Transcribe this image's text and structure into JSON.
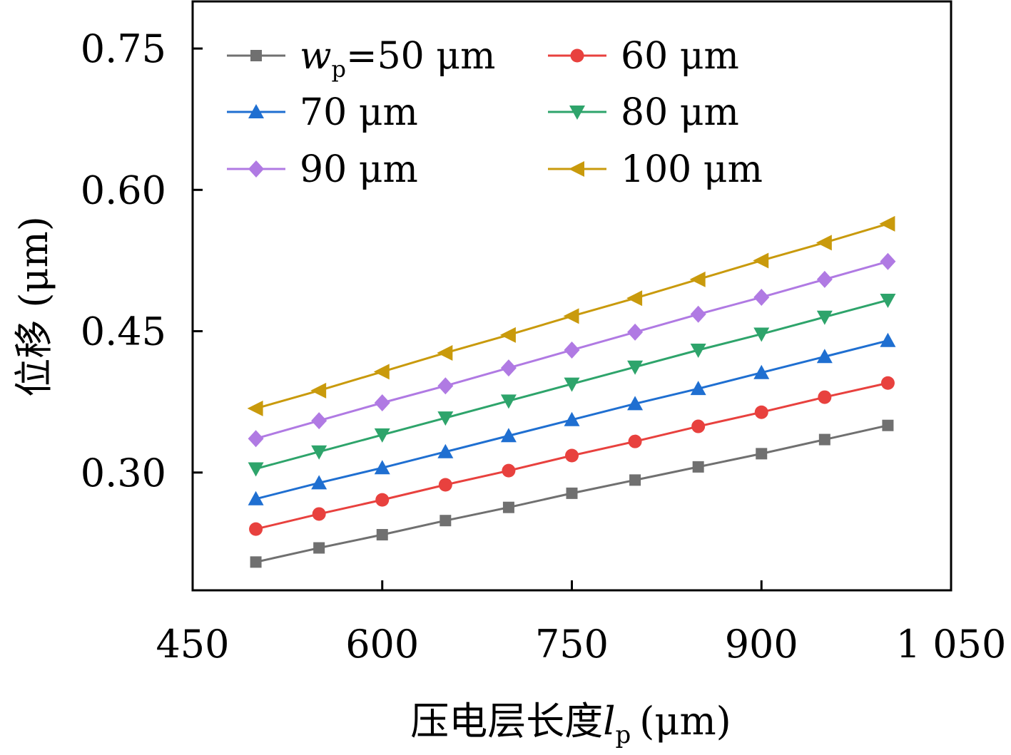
{
  "chart_data": {
    "type": "line",
    "xlabel": {
      "text": "压电层长度",
      "var": "l",
      "sub": "p",
      "unit": "(μm)"
    },
    "ylabel": "位移 (μm)",
    "xlim": [
      450,
      1050
    ],
    "ylim": [
      0.175,
      0.8
    ],
    "xticks": [
      450,
      600,
      750,
      900,
      1050
    ],
    "xtick_labels": [
      "450",
      "600",
      "750",
      "900",
      "1 050"
    ],
    "yticks": [
      0.3,
      0.45,
      0.6,
      0.75
    ],
    "ytick_labels": [
      "0.30",
      "0.45",
      "0.60",
      "0.75"
    ],
    "grid": false,
    "legend_position": "top-left",
    "x": [
      500,
      550,
      600,
      650,
      700,
      750,
      800,
      850,
      900,
      950,
      1000
    ],
    "series": [
      {
        "name": "=50 μm",
        "legend_prefix": "w",
        "legend_sub": "p",
        "color": "#707070",
        "marker": "square",
        "values": [
          0.205,
          0.22,
          0.234,
          0.249,
          0.263,
          0.278,
          0.292,
          0.306,
          0.32,
          0.335,
          0.35
        ]
      },
      {
        "name": "60 μm",
        "color": "#e8413e",
        "marker": "circle",
        "values": [
          0.24,
          0.256,
          0.271,
          0.287,
          0.302,
          0.318,
          0.333,
          0.349,
          0.364,
          0.38,
          0.395
        ]
      },
      {
        "name": "70 μm",
        "color": "#1f6fd1",
        "marker": "triangle-up",
        "values": [
          0.272,
          0.289,
          0.305,
          0.322,
          0.339,
          0.356,
          0.373,
          0.389,
          0.406,
          0.423,
          0.44
        ]
      },
      {
        "name": "80 μm",
        "color": "#2ea46b",
        "marker": "triangle-down",
        "values": [
          0.304,
          0.322,
          0.34,
          0.358,
          0.376,
          0.394,
          0.412,
          0.43,
          0.447,
          0.465,
          0.483
        ]
      },
      {
        "name": "90 μm",
        "color": "#b07ae3",
        "marker": "diamond",
        "values": [
          0.336,
          0.355,
          0.374,
          0.392,
          0.411,
          0.43,
          0.449,
          0.468,
          0.486,
          0.505,
          0.524
        ]
      },
      {
        "name": "100 μm",
        "color": "#c99a0c",
        "marker": "triangle-left",
        "values": [
          0.368,
          0.387,
          0.407,
          0.427,
          0.446,
          0.466,
          0.485,
          0.505,
          0.525,
          0.544,
          0.564
        ]
      }
    ]
  }
}
